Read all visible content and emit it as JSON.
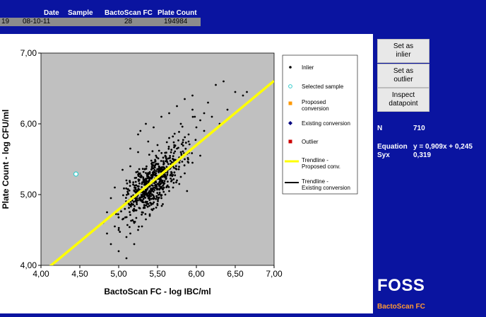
{
  "header": {
    "columns": [
      "Date",
      "Sample",
      "BactoScan FC",
      "Plate Count"
    ],
    "row": {
      "index": "19",
      "date": "08-10-11",
      "sample": "",
      "bactoscan_fc": "28",
      "plate_count": "194984"
    }
  },
  "chart_data": {
    "type": "scatter",
    "xlabel": "BactoScan FC - log IBC/ml",
    "ylabel": "Plate Count - log CFU/ml",
    "xlim": [
      4.0,
      7.0
    ],
    "ylim": [
      4.0,
      7.0
    ],
    "x_ticks": [
      "4,00",
      "4,50",
      "5,00",
      "5,50",
      "6,00",
      "6,50",
      "7,00"
    ],
    "y_ticks": [
      "4,00",
      "5,00",
      "6,00",
      "7,00"
    ],
    "plot_background": "#c0c0c0",
    "grid": false,
    "legend_position": "right",
    "legend": [
      {
        "label": "Inlier",
        "marker": "dot",
        "color": "#000000"
      },
      {
        "label": "Selected sample",
        "marker": "ring",
        "color": "#33cccc"
      },
      {
        "label": "Proposed conversion",
        "marker": "square",
        "color": "#ff9900"
      },
      {
        "label": "Existing conversion",
        "marker": "diamond",
        "color": "#000080"
      },
      {
        "label": "Outlier",
        "marker": "square",
        "color": "#cc0000"
      },
      {
        "label": "Trendline - Proposed conv.",
        "marker": "line",
        "color": "#ffff00"
      },
      {
        "label": "Trendline - Existing conversion",
        "marker": "line",
        "color": "#000000"
      }
    ],
    "trendline": {
      "slope": 0.909,
      "intercept": 0.245,
      "color": "#ffff00"
    },
    "selected_sample": {
      "x": 4.45,
      "y": 5.29
    },
    "inliers_sample": [
      [
        4.85,
        4.75
      ],
      [
        4.9,
        4.95
      ],
      [
        5.02,
        4.8
      ],
      [
        5.1,
        5.2
      ],
      [
        5.15,
        5.4
      ],
      [
        5.2,
        5.05
      ],
      [
        5.25,
        5.6
      ],
      [
        5.3,
        5.15
      ],
      [
        5.35,
        4.9
      ],
      [
        5.4,
        5.3
      ],
      [
        5.45,
        5.45
      ],
      [
        5.5,
        5.7
      ],
      [
        5.55,
        5.25
      ],
      [
        5.6,
        5.55
      ],
      [
        5.65,
        5.8
      ],
      [
        5.7,
        5.4
      ],
      [
        5.75,
        5.65
      ],
      [
        5.8,
        6.0
      ],
      [
        5.85,
        5.5
      ],
      [
        5.9,
        5.85
      ],
      [
        5.95,
        6.2
      ],
      [
        6.0,
        5.7
      ],
      [
        6.05,
        6.05
      ],
      [
        6.1,
        5.9
      ],
      [
        6.2,
        6.1
      ],
      [
        6.3,
        6.0
      ],
      [
        6.4,
        6.2
      ],
      [
        6.5,
        6.45
      ],
      [
        6.6,
        6.4
      ],
      [
        6.65,
        6.45
      ],
      [
        4.8,
        4.6
      ],
      [
        5.0,
        4.5
      ],
      [
        5.1,
        4.4
      ],
      [
        5.2,
        4.3
      ],
      [
        5.3,
        4.55
      ],
      [
        5.4,
        4.7
      ],
      [
        5.5,
        4.85
      ],
      [
        5.6,
        5.0
      ],
      [
        5.7,
        5.1
      ],
      [
        5.8,
        5.25
      ],
      [
        4.95,
        5.1
      ],
      [
        5.05,
        5.35
      ],
      [
        5.15,
        5.65
      ],
      [
        5.25,
        5.85
      ],
      [
        5.35,
        6.0
      ],
      [
        5.45,
        5.95
      ],
      [
        5.55,
        6.1
      ],
      [
        5.65,
        6.15
      ],
      [
        5.75,
        6.25
      ],
      [
        5.85,
        6.35
      ],
      [
        5.95,
        6.4
      ],
      [
        6.25,
        6.55
      ],
      [
        6.35,
        6.6
      ],
      [
        4.9,
        4.3
      ],
      [
        5.0,
        4.2
      ],
      [
        5.1,
        4.1
      ],
      [
        5.2,
        4.6
      ],
      [
        5.3,
        4.75
      ],
      [
        5.4,
        5.0
      ],
      [
        5.5,
        5.15
      ],
      [
        5.6,
        5.35
      ],
      [
        5.7,
        5.5
      ],
      [
        5.8,
        5.6
      ],
      [
        5.9,
        5.75
      ],
      [
        6.0,
        5.95
      ],
      [
        6.1,
        6.15
      ],
      [
        6.15,
        6.3
      ],
      [
        6.05,
        5.55
      ],
      [
        5.95,
        5.45
      ],
      [
        5.85,
        5.3
      ],
      [
        5.75,
        5.2
      ],
      [
        5.65,
        5.05
      ],
      [
        5.55,
        4.95
      ],
      [
        5.45,
        4.8
      ],
      [
        5.35,
        4.65
      ],
      [
        5.25,
        4.5
      ],
      [
        5.15,
        4.45
      ],
      [
        5.05,
        4.65
      ],
      [
        4.95,
        4.55
      ],
      [
        4.85,
        4.45
      ],
      [
        5.12,
        5.02
      ],
      [
        5.22,
        5.18
      ],
      [
        5.32,
        5.32
      ],
      [
        5.42,
        5.48
      ],
      [
        5.52,
        5.62
      ],
      [
        5.62,
        5.74
      ],
      [
        5.72,
        5.86
      ],
      [
        5.82,
        5.96
      ],
      [
        5.28,
        5.9
      ],
      [
        5.38,
        5.75
      ],
      [
        5.48,
        5.55
      ],
      [
        5.58,
        5.45
      ],
      [
        5.68,
        5.3
      ],
      [
        5.78,
        5.15
      ],
      [
        5.88,
        5.05
      ],
      [
        5.98,
        6.1
      ]
    ]
  },
  "buttons": {
    "set_inlier": "Set as\ninlier",
    "set_outlier": "Set as\noutlier",
    "inspect": "Inspect\ndatapoint"
  },
  "stats": {
    "n_label": "N",
    "n_value": "710",
    "equation_label": "Equation",
    "equation_value": "y = 0,909x + 0,245",
    "syx_label": "Syx",
    "syx_value": "0,319"
  },
  "brand": {
    "logo": "FOSS",
    "product": "BactoScan FC"
  }
}
